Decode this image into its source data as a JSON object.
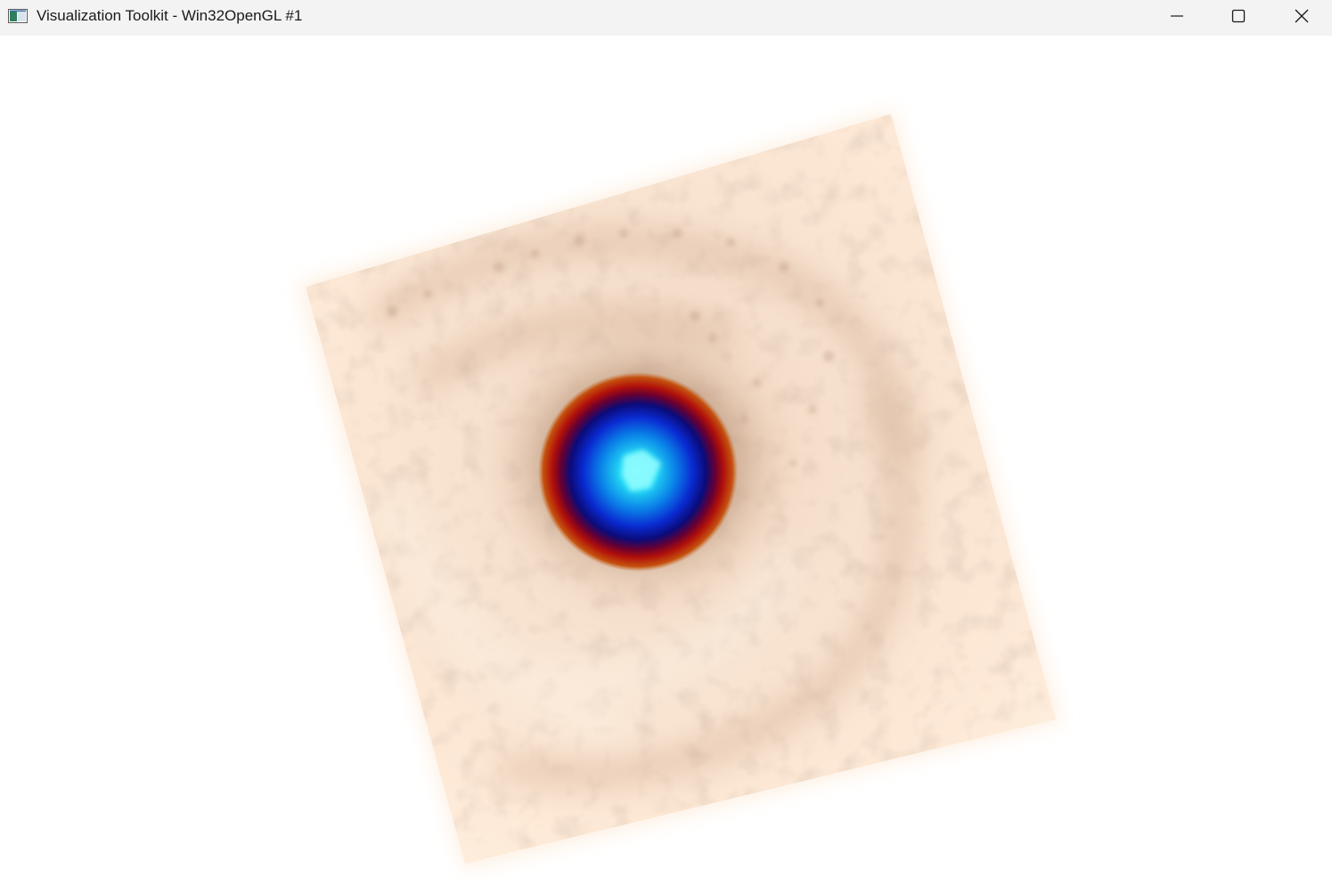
{
  "window": {
    "title": "Visualization Toolkit - Win32OpenGL #1",
    "icon": "vtk-app-icon",
    "controls": {
      "minimize_icon": "minimize-icon",
      "maximize_icon": "maximize-icon",
      "close_icon": "close-icon"
    }
  },
  "render": {
    "background_color": "#ffffff",
    "volume_colors": {
      "outer": "#fdebd6",
      "swirl": "#d9b49a",
      "ring_brown": "#b8631e",
      "ring_red": "#a00010",
      "core_dark_blue": "#0b0b7a",
      "core_blue": "#0060e0",
      "core_cyan": "#3ff0ff"
    }
  }
}
